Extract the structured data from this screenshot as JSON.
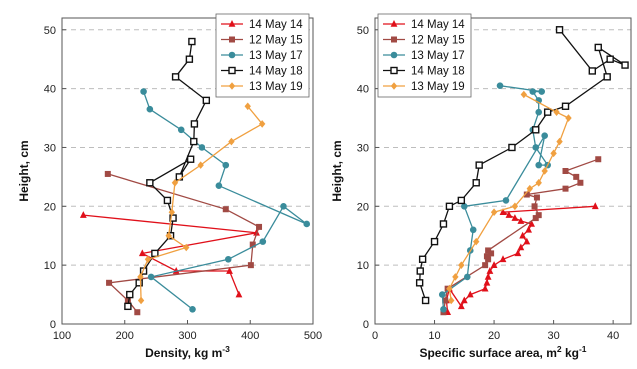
{
  "chart_data": [
    {
      "type": "line",
      "xlabel": "Density, kg m",
      "xlabel_sup": "-3",
      "ylabel": "Height, cm",
      "xlim": [
        100,
        500
      ],
      "ylim": [
        0,
        52
      ],
      "xticks": [
        100,
        200,
        300,
        400,
        500
      ],
      "yticks": [
        0,
        10,
        20,
        30,
        40,
        50
      ],
      "grid": "horizontal-dashed",
      "legend": "top-right",
      "series": [
        {
          "name": "14 May 14",
          "color": "#e0101a",
          "marker": "triangle",
          "x": [
            382,
            367,
            282,
            228,
            410,
            134
          ],
          "y": [
            5,
            9,
            9,
            12,
            15.5,
            18.5
          ]
        },
        {
          "name": "12 May 15",
          "color": "#a14a44",
          "marker": "square",
          "x": [
            220,
            205,
            175,
            401,
            404,
            414,
            361,
            173
          ],
          "y": [
            2,
            4,
            7,
            10,
            13.5,
            16.5,
            19.5,
            25.5
          ]
        },
        {
          "name": "13 May 17",
          "color": "#3a8c9b",
          "marker": "circle",
          "x": [
            308,
            242,
            365,
            420,
            453,
            490,
            350,
            361,
            323,
            290,
            240,
            230
          ],
          "y": [
            2.5,
            8,
            11,
            14,
            20,
            17,
            23.5,
            27,
            30,
            33,
            36.5,
            39.5
          ]
        },
        {
          "name": "14 May 18",
          "color": "#111111",
          "marker": "square-open",
          "x": [
            205,
            208,
            223,
            230,
            248,
            273,
            277,
            268,
            240,
            305,
            287,
            310,
            311,
            330,
            281,
            303,
            307
          ],
          "y": [
            3,
            5,
            7,
            9,
            12,
            15,
            18,
            21,
            24,
            28,
            25,
            31,
            34,
            38,
            42,
            45,
            48
          ]
        },
        {
          "name": "13 May 19",
          "color": "#f0a040",
          "marker": "diamond",
          "x": [
            226,
            225,
            237,
            298,
            270,
            275,
            280,
            321,
            370,
            419,
            396
          ],
          "y": [
            4,
            8,
            11,
            13,
            15,
            19,
            24,
            27,
            31,
            34,
            37
          ]
        }
      ]
    },
    {
      "type": "line",
      "xlabel": "Specific surface area,  m",
      "xlabel_sup": "2",
      "xlabel_tail": " kg",
      "xlabel_sup2": "-1",
      "ylabel": "Height, cm",
      "xlim": [
        0,
        43
      ],
      "ylim": [
        0,
        52
      ],
      "xticks": [
        0,
        10,
        20,
        30,
        40
      ],
      "yticks": [
        0,
        10,
        20,
        30,
        40,
        50
      ],
      "grid": "horizontal-dashed",
      "legend": "top-left",
      "series": [
        {
          "name": "14 May 14",
          "color": "#e0101a",
          "marker": "triangle",
          "x": [
            12.2,
            12.0,
            12.5,
            14.5,
            15.0,
            16.0,
            18.5,
            18.8,
            19.0,
            19.3,
            20.0,
            21.5,
            24.0,
            24.5,
            25.5,
            24.8,
            25.8,
            26.3,
            24.5,
            23.5,
            22.5,
            21.5,
            37.0
          ],
          "y": [
            2,
            4,
            6,
            3,
            4,
            5,
            6,
            7,
            8,
            9,
            10,
            11,
            12,
            13,
            14,
            15,
            16,
            17,
            17.5,
            18,
            18.5,
            19,
            20
          ]
        },
        {
          "name": "12 May 15",
          "color": "#a14a44",
          "marker": "square",
          "x": [
            11.5,
            11.8,
            12.2,
            18.5,
            19.0,
            18.8,
            19.5,
            19.0,
            27.0,
            27.5,
            26.8,
            27.2,
            25.5,
            32.0,
            34.5,
            33.8,
            32.0,
            37.5
          ],
          "y": [
            2,
            4,
            6,
            10,
            11,
            11.5,
            12,
            12.5,
            18,
            18.5,
            20,
            21.5,
            22,
            23,
            24,
            25,
            26,
            28
          ]
        },
        {
          "name": "13 May 17",
          "color": "#3a8c9b",
          "marker": "circle",
          "x": [
            11.5,
            11.3,
            15.5,
            16.0,
            16.5,
            15.0,
            22.0,
            28.5,
            27.5,
            29.0,
            27.0,
            26.5,
            27.5,
            27.5,
            26.5,
            28.0,
            21.0
          ],
          "y": [
            2.5,
            5,
            8,
            12.5,
            16,
            20,
            21,
            32,
            27,
            27,
            30,
            33,
            36,
            38,
            39.5,
            39.5,
            40.5
          ]
        },
        {
          "name": "14 May 18",
          "color": "#111111",
          "marker": "square-open",
          "x": [
            8.5,
            7.5,
            7.6,
            8.0,
            10.0,
            11.5,
            12.5,
            14.5,
            17.0,
            17.5,
            23.0,
            27.0,
            29.0,
            32.0,
            39.0,
            37.5,
            42.0,
            39.5,
            36.5,
            31.0
          ],
          "y": [
            4,
            7,
            9,
            11,
            14,
            17,
            20,
            21,
            24,
            27,
            30,
            33,
            36,
            37,
            42,
            47,
            44,
            45,
            43,
            50
          ]
        },
        {
          "name": "13 May 19",
          "color": "#f0a040",
          "marker": "diamond",
          "x": [
            12.8,
            12.5,
            13.5,
            14.5,
            17.0,
            20.0,
            23.5,
            26.0,
            27.5,
            28.5,
            30.0,
            31.0,
            32.5,
            30.5,
            25.0
          ],
          "y": [
            4,
            6,
            8,
            10,
            14,
            19,
            20,
            23,
            24,
            26,
            29,
            31,
            35,
            36,
            39
          ]
        }
      ]
    }
  ]
}
